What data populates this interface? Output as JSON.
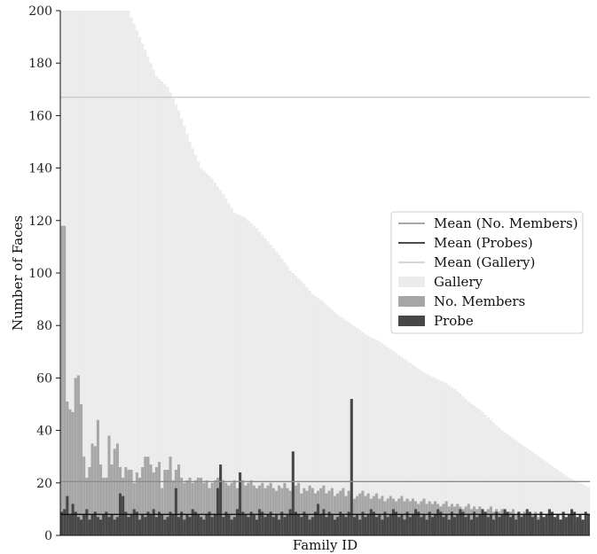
{
  "chart_data": {
    "type": "bar",
    "title": "",
    "xlabel": "Family ID",
    "ylabel": "Number of Faces",
    "ylim": [
      0,
      200
    ],
    "yticks": [
      0,
      20,
      40,
      60,
      80,
      100,
      120,
      140,
      160,
      180,
      200
    ],
    "grid": false,
    "legend": {
      "placement": "right",
      "entries": [
        {
          "label": "Mean (No. Members)",
          "kind": "line",
          "color": "#8c8c8c"
        },
        {
          "label": "Mean (Probes)",
          "kind": "line",
          "color": "#111111"
        },
        {
          "label": "Mean (Gallery)",
          "kind": "line",
          "color": "#c8c8c8"
        },
        {
          "label": "Gallery",
          "kind": "patch",
          "color": "#ebebeb"
        },
        {
          "label": "No. Members",
          "kind": "patch",
          "color": "#a6a6a6"
        },
        {
          "label": "Probe",
          "kind": "patch",
          "color": "#474747"
        }
      ]
    },
    "means": {
      "gallery": 167,
      "members": 20.5,
      "probes": 8
    },
    "gallery_profile": {
      "description_points": [
        [
          0,
          200
        ],
        [
          24,
          200
        ],
        [
          26,
          195
        ],
        [
          30,
          185
        ],
        [
          34,
          175
        ],
        [
          38,
          171
        ],
        [
          42,
          162
        ],
        [
          46,
          150
        ],
        [
          50,
          140
        ],
        [
          54,
          136
        ],
        [
          58,
          130
        ],
        [
          62,
          123
        ],
        [
          66,
          121
        ],
        [
          70,
          117
        ],
        [
          74,
          112
        ],
        [
          78,
          107
        ],
        [
          82,
          101
        ],
        [
          86,
          97
        ],
        [
          90,
          92
        ],
        [
          94,
          89
        ],
        [
          98,
          85
        ],
        [
          102,
          82
        ],
        [
          106,
          79
        ],
        [
          110,
          76
        ],
        [
          114,
          74
        ],
        [
          118,
          71
        ],
        [
          122,
          68
        ],
        [
          126,
          65
        ],
        [
          130,
          62
        ],
        [
          134,
          60
        ],
        [
          138,
          58
        ],
        [
          142,
          55
        ],
        [
          146,
          51
        ],
        [
          150,
          48
        ],
        [
          154,
          44
        ],
        [
          158,
          40
        ],
        [
          162,
          37
        ],
        [
          166,
          34
        ],
        [
          170,
          31
        ],
        [
          174,
          28
        ],
        [
          178,
          25
        ],
        [
          182,
          22
        ],
        [
          186,
          20
        ],
        [
          190,
          18
        ]
      ],
      "count": 190
    },
    "members_seed": [
      118,
      118,
      51,
      48,
      47,
      60,
      61,
      50,
      30,
      22,
      26,
      35,
      34,
      44,
      27,
      22,
      22,
      38,
      27,
      33,
      35,
      26,
      22,
      26,
      25,
      25,
      20,
      24,
      22,
      26,
      30,
      30,
      27,
      24,
      26,
      28,
      18,
      25,
      25,
      30,
      21,
      25,
      27,
      22,
      20,
      21,
      22,
      20,
      21,
      22,
      22,
      20,
      21,
      18,
      20,
      21,
      22,
      22,
      21,
      20,
      19,
      20,
      21,
      18,
      20,
      21,
      19,
      20,
      21,
      19,
      18,
      19,
      20,
      18,
      19,
      20,
      18,
      17,
      19,
      18,
      20,
      18,
      17,
      18,
      19,
      20,
      16,
      18,
      17,
      19,
      18,
      16,
      17,
      18,
      19,
      16,
      17,
      18,
      15,
      16,
      17,
      18,
      15,
      17,
      16,
      14,
      15,
      16,
      17,
      15,
      16,
      14,
      15,
      16,
      14,
      15,
      13,
      14,
      15,
      14,
      13,
      14,
      15,
      13,
      14,
      13,
      14,
      13,
      12,
      13,
      14,
      12,
      13,
      12,
      13,
      12,
      11,
      12,
      13,
      11,
      12,
      11,
      12,
      11,
      10,
      11,
      12,
      10,
      11,
      10,
      11,
      10,
      9,
      10,
      11,
      9,
      10,
      9,
      10,
      9,
      8,
      9,
      10,
      8,
      9,
      8,
      9,
      8,
      7,
      8,
      9,
      7,
      8,
      7,
      8,
      7,
      6,
      7,
      8,
      6,
      7,
      6,
      7,
      6,
      5,
      6,
      7,
      5,
      6,
      5
    ],
    "probe_seed": [
      9,
      10,
      15,
      8,
      12,
      9,
      7,
      6,
      8,
      10,
      6,
      8,
      9,
      7,
      6,
      8,
      9,
      7,
      8,
      6,
      7,
      16,
      15,
      9,
      7,
      8,
      10,
      9,
      6,
      8,
      7,
      9,
      8,
      10,
      7,
      9,
      8,
      6,
      7,
      9,
      8,
      18,
      7,
      9,
      6,
      8,
      7,
      10,
      9,
      8,
      7,
      6,
      8,
      9,
      7,
      8,
      18,
      27,
      7,
      9,
      8,
      6,
      7,
      10,
      24,
      9,
      8,
      7,
      9,
      8,
      6,
      10,
      9,
      7,
      8,
      9,
      7,
      8,
      6,
      9,
      7,
      8,
      10,
      32,
      9,
      8,
      7,
      9,
      8,
      6,
      7,
      9,
      12,
      8,
      10,
      7,
      9,
      8,
      6,
      7,
      9,
      8,
      7,
      9,
      52,
      7,
      8,
      6,
      9,
      7,
      8,
      10,
      9,
      7,
      8,
      6,
      9,
      7,
      8,
      10,
      9,
      7,
      8,
      6,
      9,
      7,
      8,
      10,
      9,
      7,
      8,
      6,
      9,
      7,
      8,
      10,
      9,
      7,
      8,
      6,
      9,
      7,
      8,
      10,
      9,
      7,
      8,
      6,
      9,
      7,
      8,
      10,
      9,
      7,
      8,
      6,
      9,
      7,
      8,
      10,
      9,
      7,
      8,
      6,
      9,
      7,
      8,
      10,
      9,
      7,
      8,
      6,
      9,
      7,
      8,
      10,
      9,
      7,
      8,
      6,
      9,
      7,
      8,
      10,
      9,
      7,
      8,
      6,
      9,
      8
    ]
  }
}
